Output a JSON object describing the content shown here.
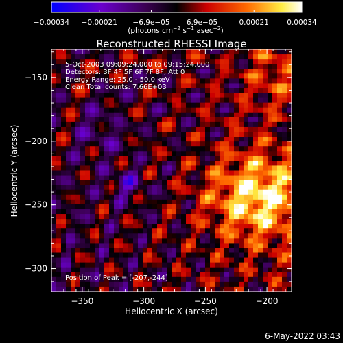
{
  "chart_data": {
    "type": "heatmap",
    "title": "Reconstructed RHESSI Image",
    "xlabel": "Heliocentric X (arcsec)",
    "ylabel": "Heliocentric Y (arcsec)",
    "xlim": [
      -375,
      -180
    ],
    "ylim": [
      -318,
      -128
    ],
    "x_ticks": [
      -350,
      -300,
      -250,
      -200
    ],
    "x_tick_labels": [
      "−350",
      "−300",
      "−250",
      "−200"
    ],
    "y_ticks": [
      -150,
      -200,
      -250,
      -300
    ],
    "y_tick_labels": [
      "−150",
      "−200",
      "−250",
      "−300"
    ],
    "colorbar": {
      "range": [
        -0.00034,
        0.00034
      ],
      "ticks": [
        -0.00034,
        -0.00021,
        -6.9e-05,
        6.9e-05,
        0.00021,
        0.00034
      ],
      "tick_labels": [
        "−0.00034",
        "−0.00021",
        "−6.9e−05",
        "6.9e−05",
        "0.00021",
        "0.00034"
      ],
      "units_main": "(photons cm",
      "units_exp1": "−2",
      "units_mid": " s",
      "units_exp2": "−1",
      "units_mid2": " asec",
      "units_exp3": "−2",
      "units_end": ")",
      "colors": [
        "#0000ff",
        "#6a00cc",
        "#3a0050",
        "#000000",
        "#cc0000",
        "#ff6a00",
        "#ffee44",
        "#ffffff"
      ]
    },
    "annotations": [
      "5-Oct-2003 09:09:24.000 to 09:15:24.000",
      "Detectors: 3F 4F 5F 6F 7F 8F, Att 0",
      "Energy Range: 25.0 - 50.0 keV",
      "Clean     Total counts: 7.66E+03"
    ],
    "peak_label": "Position of Peak = [-207,-244]",
    "peak": [
      -207,
      -244
    ]
  },
  "footer": {
    "timestamp": "6-May-2022 03:43"
  }
}
